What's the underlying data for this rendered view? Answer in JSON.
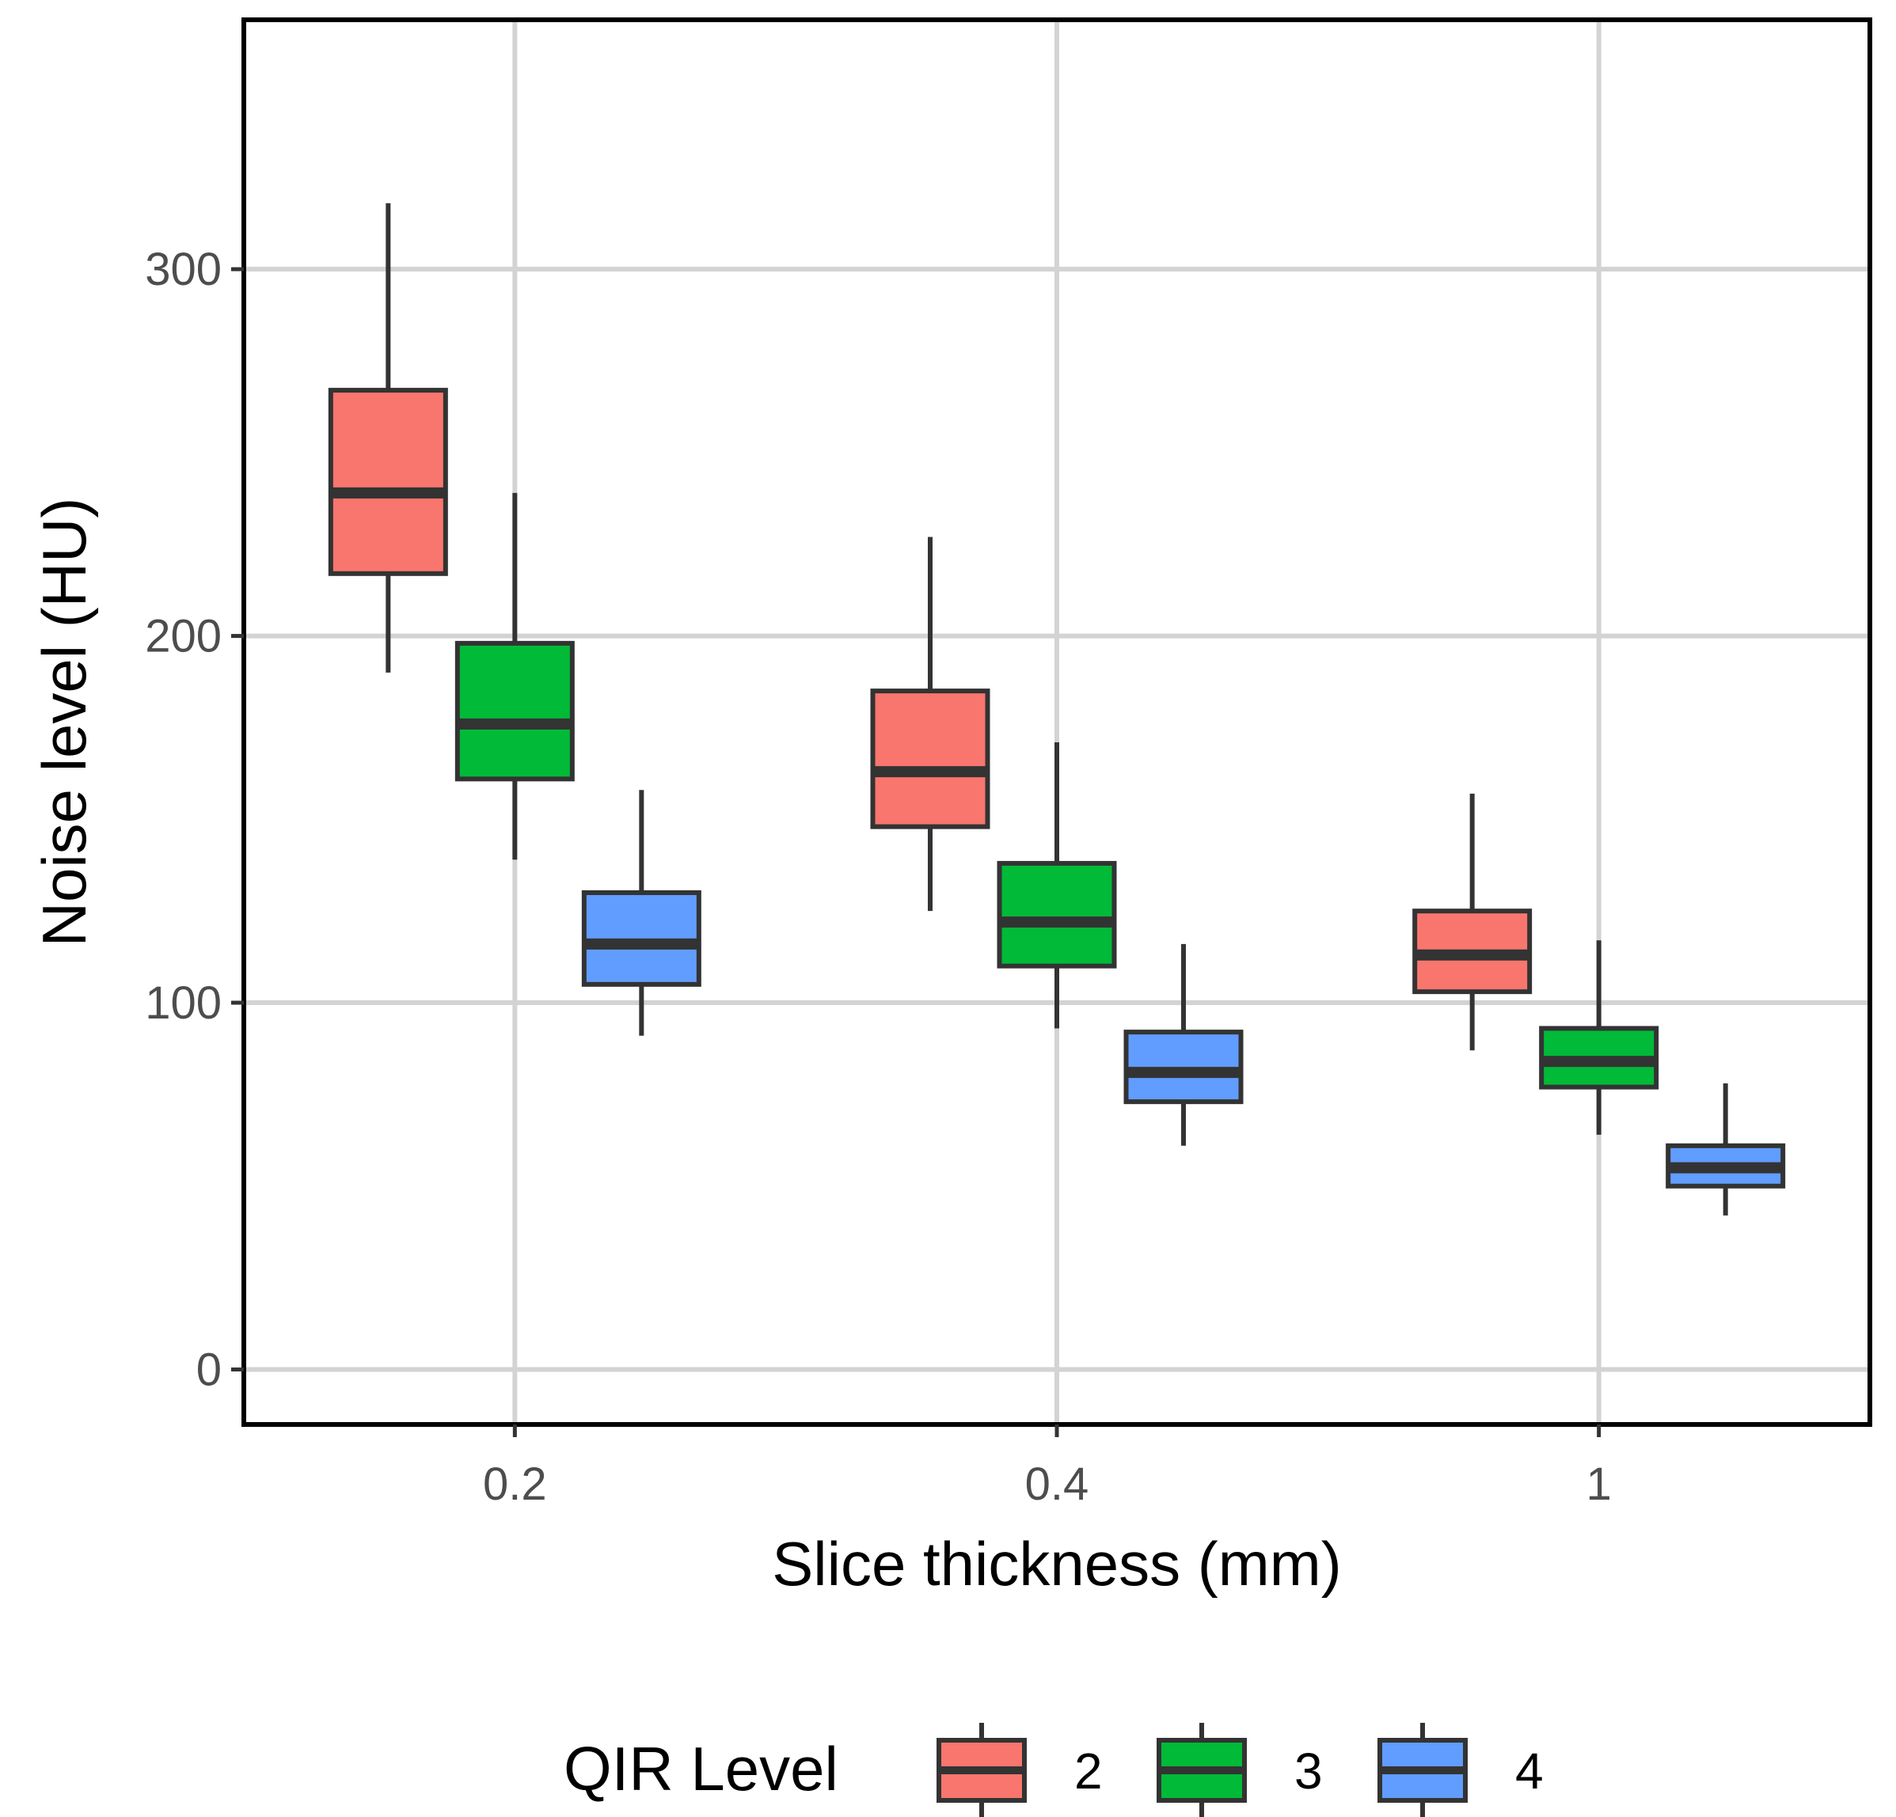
{
  "chart_data": {
    "type": "boxplot",
    "xlabel": "Slice thickness (mm)",
    "ylabel": "Noise level (HU)",
    "categories": [
      "0.2",
      "0.4",
      "1"
    ],
    "ylim": [
      -15,
      368
    ],
    "yticks": [
      0,
      100,
      200,
      300
    ],
    "grid": true,
    "legend": {
      "title": "QIR Level",
      "position": "bottom"
    },
    "series": [
      {
        "name": "2",
        "color": "#F8766D",
        "boxes": [
          {
            "category": "0.2",
            "min": 190,
            "q1": 217,
            "median": 239,
            "q3": 267,
            "max": 318
          },
          {
            "category": "0.4",
            "min": 125,
            "q1": 148,
            "median": 163,
            "q3": 185,
            "max": 227
          },
          {
            "category": "1",
            "min": 87,
            "q1": 103,
            "median": 113,
            "q3": 125,
            "max": 157
          }
        ]
      },
      {
        "name": "3",
        "color": "#00BA38",
        "boxes": [
          {
            "category": "0.2",
            "min": 139,
            "q1": 161,
            "median": 176,
            "q3": 198,
            "max": 239
          },
          {
            "category": "0.4",
            "min": 93,
            "q1": 110,
            "median": 122,
            "q3": 138,
            "max": 171
          },
          {
            "category": "1",
            "min": 64,
            "q1": 77,
            "median": 84,
            "q3": 93,
            "max": 117
          }
        ]
      },
      {
        "name": "4",
        "color": "#619CFF",
        "boxes": [
          {
            "category": "0.2",
            "min": 91,
            "q1": 105,
            "median": 116,
            "q3": 130,
            "max": 158
          },
          {
            "category": "0.4",
            "min": 61,
            "q1": 73,
            "median": 81,
            "q3": 92,
            "max": 116
          },
          {
            "category": "1",
            "min": 42,
            "q1": 50,
            "median": 55,
            "q3": 61,
            "max": 78
          }
        ]
      }
    ]
  }
}
